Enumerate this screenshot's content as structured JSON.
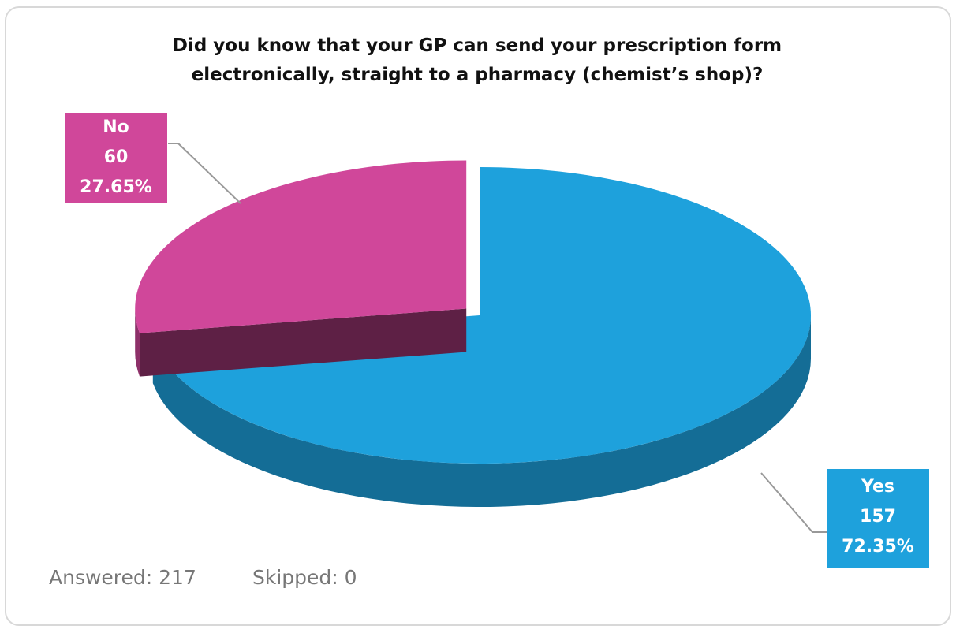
{
  "chart_data": {
    "type": "pie",
    "title": "Did you know that your GP can send your prescription form electronically, straight to a pharmacy (chemist’s shop)?",
    "categories": [
      "Yes",
      "No"
    ],
    "values": [
      157,
      60
    ],
    "percents": [
      72.35,
      27.65
    ],
    "percent_labels": [
      "72.35%",
      "27.65%"
    ],
    "colors": [
      "#1ea1dc",
      "#d0479a"
    ],
    "footer": {
      "answered": "Answered: 217",
      "skipped": "Skipped: 0"
    }
  }
}
